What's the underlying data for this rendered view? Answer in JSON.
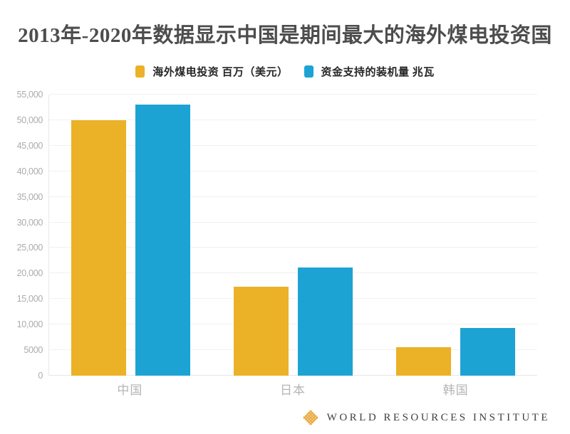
{
  "title": "2013年-2020年数据显示中国是期间最大的海外煤电投资国",
  "legend": [
    {
      "label": "海外煤电投资  百万（美元）",
      "color": "#EBB127"
    },
    {
      "label": "资金支持的装机量 兆瓦",
      "color": "#1CA3D3"
    }
  ],
  "footer": {
    "brand": "WORLD RESOURCES INSTITUTE",
    "logo_color": "#E8A83C"
  },
  "chart_data": {
    "type": "bar",
    "title": "2013年-2020年数据显示中国是期间最大的海外煤电投资国",
    "categories": [
      "中国",
      "日本",
      "韩国"
    ],
    "series": [
      {
        "name": "海外煤电投资 百万（美元）",
        "color": "#EBB127",
        "values": [
          50000,
          17400,
          5600
        ]
      },
      {
        "name": "资金支持的装机量 兆瓦",
        "color": "#1CA3D3",
        "values": [
          53000,
          21200,
          9300
        ]
      }
    ],
    "xlabel": "",
    "ylabel": "",
    "ylim": [
      0,
      55000
    ],
    "ytick_step": 5000,
    "ytick_labels": [
      "0",
      "5000",
      "10,000",
      "15,000",
      "20,000",
      "25,000",
      "30,000",
      "35,000",
      "40,000",
      "45,000",
      "50,000",
      "55,000"
    ],
    "grid": true,
    "legend_position": "top"
  }
}
